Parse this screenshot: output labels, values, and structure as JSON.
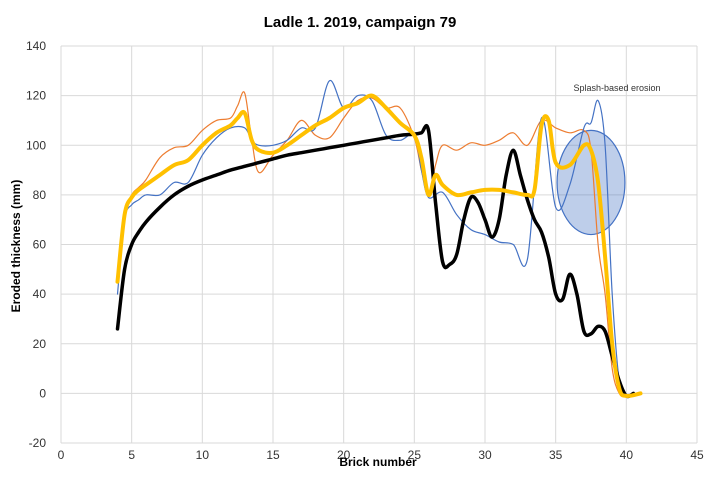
{
  "chart_data": {
    "type": "line",
    "title": "Ladle 1. 2019, campaign 79",
    "xlabel": "Brick number",
    "ylabel": "Eroded thickness (mm)",
    "xlim": [
      0,
      45
    ],
    "ylim": [
      -20,
      140
    ],
    "xticks": [
      0,
      5,
      10,
      15,
      20,
      25,
      30,
      35,
      40,
      45
    ],
    "yticks": [
      -20,
      0,
      20,
      40,
      60,
      80,
      100,
      120,
      140
    ],
    "grid": true,
    "legend": "none",
    "annotation": {
      "text": "Splash-based erosion",
      "ellipse_center": [
        37.5,
        85
      ],
      "ellipse_radius": [
        2.4,
        21
      ],
      "color": "#4472c4"
    },
    "series": [
      {
        "name": "orange",
        "color": "#ed7d31",
        "width": 1.2,
        "x": [
          4,
          4.5,
          5,
          5.5,
          6,
          7,
          8,
          9,
          10,
          11,
          12,
          12.5,
          13,
          13.5,
          14,
          15,
          16,
          17,
          18,
          19,
          20,
          21,
          22,
          23,
          24,
          25,
          25.5,
          26,
          26.5,
          27,
          28,
          29,
          30,
          31,
          32,
          33,
          34,
          35,
          36,
          37,
          37.5,
          38,
          38.5,
          39,
          39.5,
          40,
          41
        ],
        "values": [
          45,
          72,
          80,
          83,
          86,
          95,
          99,
          100,
          106,
          110,
          111,
          116,
          121,
          102,
          89,
          96,
          102,
          110,
          104,
          103,
          111,
          118,
          119,
          115,
          115,
          103,
          90,
          80,
          92,
          100,
          98,
          101,
          100,
          102,
          105,
          100,
          110,
          107,
          105,
          106,
          98,
          60,
          40,
          10,
          0,
          -1,
          0
        ]
      },
      {
        "name": "blue",
        "color": "#4472c4",
        "width": 1.2,
        "x": [
          4,
          4.5,
          5,
          5.5,
          6,
          7,
          8,
          9,
          10,
          11,
          12,
          13,
          13.5,
          14,
          15,
          16,
          17,
          18,
          19,
          20,
          21,
          22,
          23,
          24,
          25,
          25.5,
          26,
          27,
          28,
          29,
          30,
          31,
          32,
          33,
          34,
          35,
          36,
          37,
          37.5,
          38,
          38.5,
          39,
          39.5,
          40,
          41
        ],
        "values": [
          40,
          70,
          76,
          78,
          80,
          80,
          85,
          85,
          96,
          103,
          107,
          107,
          102,
          100,
          100,
          102,
          107,
          107,
          126,
          115,
          120,
          118,
          104,
          102,
          104,
          90,
          79,
          81,
          72,
          66,
          64,
          61,
          60,
          54,
          111,
          75,
          84,
          107,
          109,
          118,
          100,
          40,
          5,
          -1,
          0
        ]
      },
      {
        "name": "black",
        "color": "#000000",
        "width": 3.5,
        "x": [
          4,
          4.5,
          5,
          5.5,
          6,
          7,
          8,
          9,
          10,
          11,
          12,
          13,
          14,
          15,
          16,
          17,
          18,
          19,
          20,
          21,
          22,
          23,
          24,
          25,
          25.5,
          26,
          26.5,
          27,
          27.5,
          28,
          28.5,
          29,
          29.5,
          30,
          30.5,
          31,
          31.5,
          32,
          32.5,
          33,
          33.5,
          34,
          34.5,
          35,
          35.5,
          36,
          36.5,
          37,
          37.5,
          38,
          38.5,
          39,
          39.5,
          40,
          40.5
        ],
        "values": [
          26,
          50,
          60,
          65,
          69,
          75,
          80,
          83.5,
          86,
          88,
          90,
          91.5,
          93,
          94.5,
          96,
          97,
          98,
          99,
          100,
          101,
          102,
          103,
          104,
          104.5,
          105,
          106,
          77,
          53,
          52,
          56,
          70,
          79,
          77,
          70,
          63,
          70,
          88,
          98,
          88,
          78,
          70,
          65,
          55,
          40,
          38,
          48,
          40,
          25,
          24,
          27,
          25,
          15,
          5,
          -1,
          0
        ]
      },
      {
        "name": "yellow",
        "color": "#ffc000",
        "width": 4,
        "x": [
          4,
          4.5,
          5,
          5.5,
          6,
          7,
          8,
          9,
          10,
          11,
          12,
          12.5,
          13,
          13.5,
          14,
          15,
          16,
          17,
          18,
          19,
          20,
          21,
          22,
          23,
          24,
          25,
          25.5,
          26,
          26.5,
          27,
          28,
          29,
          30,
          31,
          32,
          33,
          33.5,
          34,
          34.5,
          35,
          36,
          37,
          37.5,
          38,
          38.5,
          39,
          39.5,
          40,
          41
        ],
        "values": [
          45,
          72,
          79,
          82,
          84,
          88,
          92,
          94,
          100,
          105,
          108,
          111,
          113,
          102,
          98,
          97,
          100,
          104,
          108,
          111,
          115,
          117,
          120,
          115,
          109,
          104,
          95,
          80,
          88,
          84,
          80,
          81,
          82,
          82,
          81,
          80,
          82,
          108,
          110,
          93,
          92,
          100,
          98,
          85,
          55,
          20,
          2,
          -1,
          0
        ]
      }
    ]
  }
}
